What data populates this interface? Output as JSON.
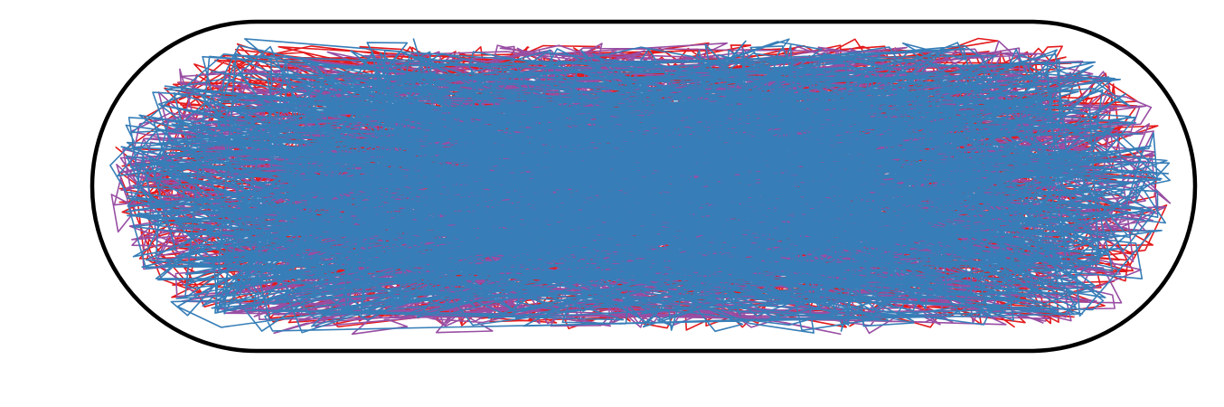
{
  "figure": {
    "boundary": {
      "shape": "stadium",
      "color": "#000000"
    },
    "trajectories": [
      {
        "color": "#e41a1c",
        "layer": 1
      },
      {
        "color": "#984ea3",
        "layer": 2
      },
      {
        "color": "#377eb8",
        "layer": 3
      }
    ]
  }
}
